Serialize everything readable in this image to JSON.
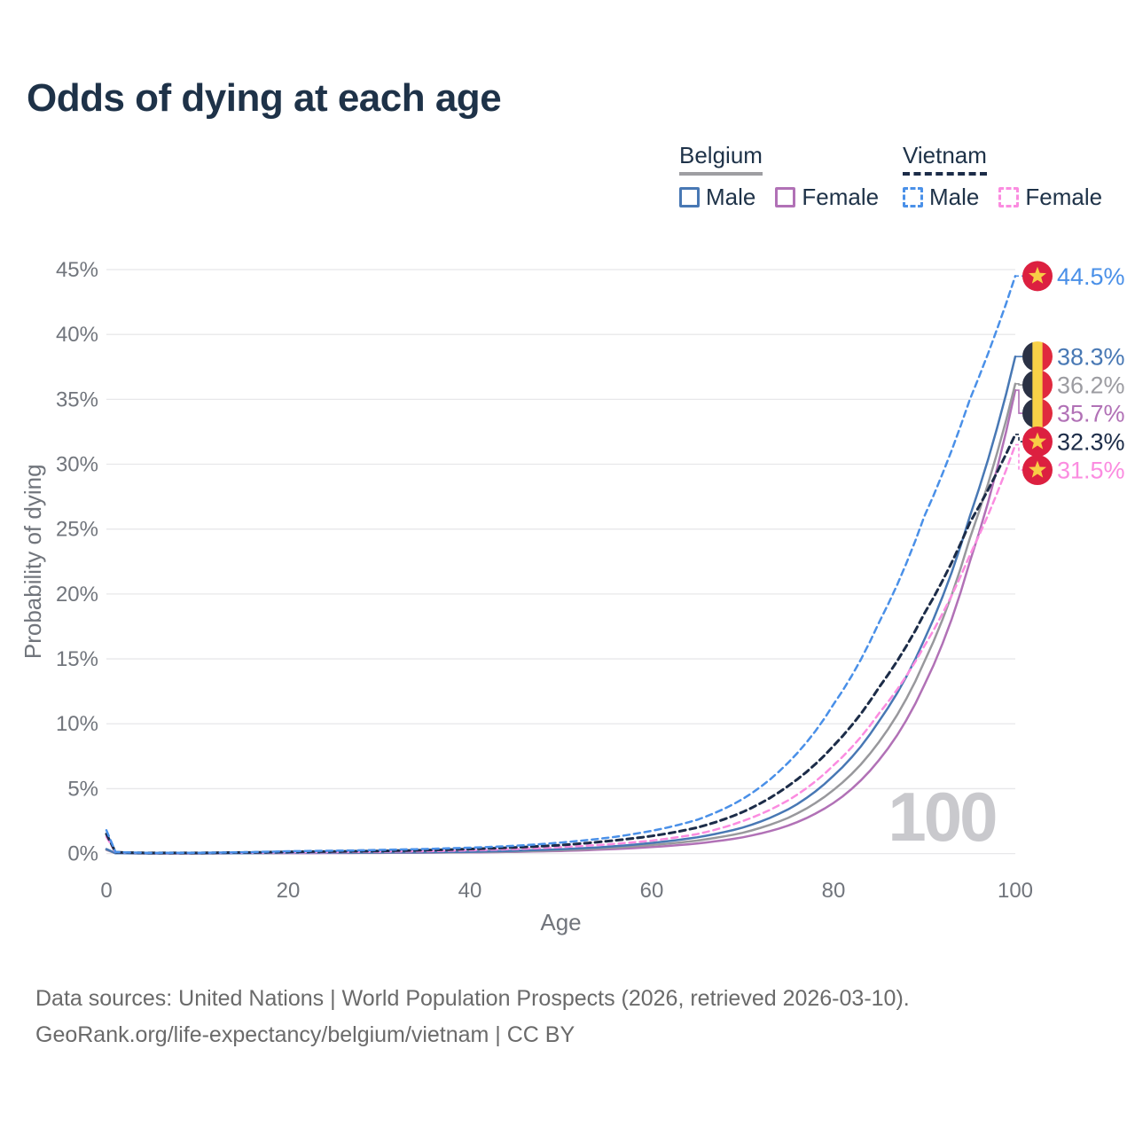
{
  "title": "Odds of dying at each age",
  "legend": {
    "groups": [
      {
        "label": "Belgium",
        "line_style": "solid",
        "line_color": "#9e9ea2",
        "items": [
          {
            "label": "Male",
            "color": "#4878b4"
          },
          {
            "label": "Female",
            "color": "#b171b6"
          }
        ]
      },
      {
        "label": "Vietnam",
        "line_style": "dashed",
        "line_color": "#1c2c48",
        "items": [
          {
            "label": "Male",
            "color": "#4a90e8"
          },
          {
            "label": "Female",
            "color": "#fb8ce0"
          }
        ]
      }
    ]
  },
  "chart_data": {
    "type": "line",
    "title": "Odds of dying at each age",
    "xlabel": "Age",
    "ylabel": "Probability of dying",
    "xlim": [
      0,
      100
    ],
    "ylim": [
      0,
      45
    ],
    "x_ticks": [
      0,
      20,
      40,
      60,
      80,
      100
    ],
    "y_ticks": [
      "0%",
      "5%",
      "10%",
      "15%",
      "20%",
      "25%",
      "30%",
      "35%",
      "40%",
      "45%"
    ],
    "grid": true,
    "legend_position": "top-right",
    "age_indicator": "100",
    "ages": [
      0,
      1,
      5,
      10,
      15,
      20,
      25,
      30,
      35,
      40,
      45,
      50,
      55,
      60,
      65,
      70,
      75,
      80,
      85,
      90,
      95,
      100
    ],
    "series": [
      {
        "name": "Belgium Female",
        "country": "Belgium",
        "sex": "Female",
        "color": "#b171b6",
        "dashed": false,
        "width": 2.5,
        "flag": "belgium",
        "end_label": "35.7%",
        "values": [
          0.28,
          0.022,
          0.009,
          0.01,
          0.022,
          0.032,
          0.04,
          0.05,
          0.065,
          0.09,
          0.13,
          0.2,
          0.32,
          0.5,
          0.78,
          1.25,
          2.15,
          3.9,
          7.2,
          13.0,
          22.5,
          35.7
        ]
      },
      {
        "name": "Belgium",
        "country": "Belgium",
        "sex": "Both",
        "color": "#98989c",
        "dashed": false,
        "width": 2.5,
        "flag": "belgium",
        "end_label": "36.2%",
        "label_color": "#9c9ca1",
        "values": [
          0.3,
          0.026,
          0.01,
          0.011,
          0.026,
          0.046,
          0.056,
          0.066,
          0.082,
          0.11,
          0.17,
          0.26,
          0.42,
          0.66,
          1.0,
          1.6,
          2.75,
          4.9,
          8.6,
          14.8,
          24.3,
          36.2
        ]
      },
      {
        "name": "Belgium Male",
        "country": "Belgium",
        "sex": "Male",
        "color": "#4878b4",
        "dashed": false,
        "width": 2.5,
        "flag": "belgium",
        "end_label": "38.3%",
        "values": [
          0.35,
          0.03,
          0.01,
          0.012,
          0.03,
          0.06,
          0.07,
          0.08,
          0.1,
          0.14,
          0.22,
          0.33,
          0.52,
          0.82,
          1.25,
          2.0,
          3.4,
          6.0,
          10.2,
          16.5,
          26.0,
          38.3
        ]
      },
      {
        "name": "Vietnam Female",
        "country": "Vietnam",
        "sex": "Female",
        "color": "#fb8ce0",
        "dashed": true,
        "width": 2.5,
        "flag": "vietnam",
        "end_label": "31.5%",
        "values": [
          1.3,
          0.09,
          0.04,
          0.045,
          0.06,
          0.09,
          0.11,
          0.14,
          0.18,
          0.25,
          0.35,
          0.5,
          0.7,
          1.0,
          1.5,
          2.5,
          4.1,
          6.8,
          10.8,
          16.0,
          23.0,
          31.5
        ]
      },
      {
        "name": "Vietnam",
        "country": "Vietnam",
        "sex": "Both",
        "color": "#1c2c48",
        "dashed": true,
        "width": 3,
        "flag": "vietnam",
        "end_label": "32.3%",
        "values": [
          1.5,
          0.1,
          0.045,
          0.05,
          0.08,
          0.13,
          0.16,
          0.2,
          0.26,
          0.35,
          0.47,
          0.65,
          0.95,
          1.35,
          2.0,
          3.2,
          5.2,
          8.3,
          12.8,
          18.5,
          25.5,
          32.3
        ]
      },
      {
        "name": "Vietnam Male",
        "country": "Vietnam",
        "sex": "Male",
        "color": "#4a90e8",
        "dashed": true,
        "width": 2.5,
        "flag": "vietnam",
        "end_label": "44.5%",
        "values": [
          1.8,
          0.12,
          0.05,
          0.06,
          0.1,
          0.18,
          0.22,
          0.28,
          0.35,
          0.45,
          0.6,
          0.85,
          1.2,
          1.75,
          2.6,
          4.2,
          7.0,
          11.5,
          17.8,
          26.0,
          35.0,
          44.5
        ]
      }
    ],
    "flags": {
      "belgium": {
        "stripes": [
          "#2b3245",
          "#f8d147",
          "#e02a3e"
        ]
      },
      "vietnam": {
        "bg": "#dc2040",
        "star": "#f8cd46"
      }
    },
    "colors": {
      "grid": "#e8e8ea",
      "axis_text": "#71757c",
      "watermark": "#c9c9cd"
    }
  },
  "footer": {
    "line1": "Data sources: United Nations | World Population Prospects (2026, retrieved 2026-03-10).",
    "line2": "GeoRank.org/life-expectancy/belgium/vietnam | CC BY"
  }
}
